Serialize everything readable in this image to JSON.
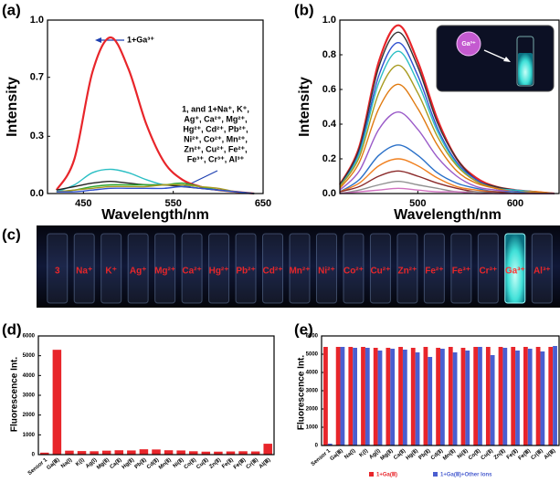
{
  "chart_data": [
    {
      "type": "line",
      "label": "(a)",
      "x_label": "Wavelength/nm",
      "y_label": "Intensity",
      "annotations": [
        "1+Ga³⁺"
      ],
      "note_lines": [
        "1, and 1+Na⁺, K⁺,",
        "Ag⁺, Ca²⁺, Mg²⁺,",
        "Hg²⁺, Cd²⁺, Pb²⁺,",
        "Ni²⁺, Co²⁺, Mn²⁺,",
        "Zn²⁺, Cu²⁺, Fe²⁺,",
        "Fe³⁺, Cr³⁺, Al³⁺"
      ],
      "x": [
        420,
        440,
        460,
        480,
        500,
        520,
        540,
        560,
        580,
        600,
        620,
        640
      ],
      "xlim": [
        410,
        650
      ],
      "xticks": [
        450,
        550,
        650
      ],
      "ylim": [
        0,
        1.0
      ],
      "yticks": [
        {
          "value": 0,
          "label": "0.0"
        },
        {
          "value": 0.33,
          "label": "0.3"
        },
        {
          "value": 0.67,
          "label": "0.7"
        },
        {
          "value": 1.0,
          "label": "1.0"
        }
      ],
      "series": [
        {
          "color": "#e8252a",
          "values": [
            0.02,
            0.2,
            0.7,
            0.9,
            0.72,
            0.4,
            0.18,
            0.08,
            0.04,
            0.02,
            0.01,
            0
          ]
        },
        {
          "color": "#2bbfc4",
          "values": [
            0.01,
            0.05,
            0.12,
            0.14,
            0.12,
            0.08,
            0.05,
            0.05,
            0.04,
            0.02,
            0.01,
            0
          ]
        },
        {
          "color": "#222222",
          "values": [
            0.02,
            0.04,
            0.06,
            0.07,
            0.06,
            0.05,
            0.05,
            0.04,
            0.03,
            0.02,
            0.01,
            0
          ]
        },
        {
          "color": "#2ea62e",
          "values": [
            0.01,
            0.02,
            0.04,
            0.05,
            0.05,
            0.05,
            0.05,
            0.06,
            0.04,
            0.02,
            0.01,
            0
          ]
        },
        {
          "color": "#a89b20",
          "values": [
            0.01,
            0.02,
            0.03,
            0.04,
            0.04,
            0.04,
            0.05,
            0.05,
            0.04,
            0.03,
            0.01,
            0
          ]
        },
        {
          "color": "#3050d0",
          "values": [
            0.01,
            0.01,
            0.02,
            0.03,
            0.03,
            0.03,
            0.03,
            0.04,
            0.03,
            0.02,
            0.01,
            0
          ]
        }
      ]
    },
    {
      "type": "line",
      "label": "(b)",
      "x_label": "Wavelength/nm",
      "y_label": "Intensity",
      "inset_label": "Ga³⁺",
      "x": [
        420,
        440,
        460,
        480,
        500,
        520,
        540,
        560,
        580,
        600,
        620,
        640
      ],
      "xlim": [
        420,
        645
      ],
      "xticks": [
        500,
        600
      ],
      "ylim": [
        0,
        1.0
      ],
      "yticks": [
        {
          "value": 0,
          "label": "0.0"
        },
        0.2,
        0.4,
        0.6,
        0.8,
        {
          "value": 1.0,
          "label": "1.0"
        }
      ],
      "series": [
        {
          "color": "#e8252a",
          "values": [
            0.05,
            0.27,
            0.76,
            0.97,
            0.76,
            0.43,
            0.2,
            0.09,
            0.04,
            0.02,
            0.01,
            0
          ]
        },
        {
          "color": "#333333",
          "values": [
            0.05,
            0.26,
            0.73,
            0.93,
            0.73,
            0.41,
            0.2,
            0.08,
            0.04,
            0.02,
            0.01,
            0
          ]
        },
        {
          "color": "#3050d0",
          "values": [
            0.04,
            0.24,
            0.68,
            0.87,
            0.68,
            0.38,
            0.18,
            0.08,
            0.03,
            0.02,
            0.01,
            0
          ]
        },
        {
          "color": "#2bbfc4",
          "values": [
            0.04,
            0.23,
            0.64,
            0.82,
            0.64,
            0.36,
            0.17,
            0.07,
            0.03,
            0.02,
            0.01,
            0
          ]
        },
        {
          "color": "#a89b20",
          "values": [
            0.04,
            0.21,
            0.58,
            0.74,
            0.58,
            0.33,
            0.16,
            0.07,
            0.03,
            0.01,
            0.01,
            0
          ]
        },
        {
          "color": "#e07a10",
          "values": [
            0.03,
            0.18,
            0.49,
            0.63,
            0.49,
            0.28,
            0.13,
            0.06,
            0.03,
            0.01,
            0.01,
            0
          ]
        },
        {
          "color": "#9a5ac8",
          "values": [
            0.02,
            0.13,
            0.37,
            0.47,
            0.37,
            0.21,
            0.1,
            0.04,
            0.02,
            0.01,
            0,
            0
          ]
        },
        {
          "color": "#2a70c8",
          "values": [
            0.01,
            0.08,
            0.22,
            0.28,
            0.22,
            0.12,
            0.06,
            0.03,
            0.01,
            0.01,
            0,
            0
          ]
        },
        {
          "color": "#f08020",
          "values": [
            0.01,
            0.06,
            0.16,
            0.2,
            0.16,
            0.09,
            0.04,
            0.02,
            0.01,
            0,
            0,
            0
          ]
        },
        {
          "color": "#8b2a2a",
          "values": [
            0.01,
            0.04,
            0.1,
            0.13,
            0.1,
            0.06,
            0.03,
            0.01,
            0.01,
            0,
            0,
            0
          ]
        },
        {
          "color": "#909090",
          "values": [
            0,
            0.02,
            0.05,
            0.07,
            0.05,
            0.03,
            0.01,
            0.01,
            0,
            0,
            0,
            0
          ]
        },
        {
          "color": "#d070c0",
          "values": [
            0,
            0.01,
            0.02,
            0.03,
            0.02,
            0.01,
            0.01,
            0,
            0,
            0,
            0,
            0
          ]
        }
      ]
    },
    {
      "type": "bar",
      "label": "(d)",
      "y_label": "Fluorescence Int.",
      "color": "#e8252a",
      "categories": [
        "Sensor 1",
        "Ga(Ⅲ)",
        "Na(Ⅰ)",
        "K(Ⅰ)",
        "Ag(Ⅰ)",
        "Mg(Ⅱ)",
        "Ca(Ⅱ)",
        "Hg(Ⅱ)",
        "Pb(Ⅱ)",
        "Cd(Ⅱ)",
        "Mn(Ⅱ)",
        "Ni(Ⅱ)",
        "Co(Ⅱ)",
        "Cu(Ⅱ)",
        "Zn(Ⅱ)",
        "Fe(Ⅱ)",
        "Fe(Ⅲ)",
        "Cr(Ⅲ)",
        "Al(Ⅲ)"
      ],
      "values": [
        100,
        5300,
        200,
        180,
        170,
        200,
        220,
        210,
        270,
        260,
        220,
        210,
        170,
        150,
        150,
        160,
        170,
        160,
        550
      ],
      "ylim": [
        0,
        6000
      ],
      "yticks": [
        0,
        1000,
        2000,
        3000,
        4000,
        5000,
        6000
      ]
    },
    {
      "type": "bar",
      "label": "(e)",
      "y_label": "Fluorescence Int.",
      "categories": [
        "Sensor 1",
        "Ga(Ⅲ)",
        "Na(Ⅰ)",
        "K(Ⅰ)",
        "Ag(Ⅰ)",
        "Mg(Ⅱ)",
        "Ca(Ⅱ)",
        "Hg(Ⅱ)",
        "Pb(Ⅱ)",
        "Cd(Ⅱ)",
        "Mn(Ⅱ)",
        "Ni(Ⅱ)",
        "Co(Ⅱ)",
        "Cu(Ⅱ)",
        "Zn(Ⅱ)",
        "Fe(Ⅱ)",
        "Fe(Ⅲ)",
        "Cr(Ⅲ)",
        "Al(Ⅲ)"
      ],
      "series": [
        {
          "name": "1+Ga(Ⅲ)",
          "color": "#e8252a",
          "values": [
            5400,
            5400,
            5400,
            5400,
            5350,
            5350,
            5400,
            5350,
            5400,
            5350,
            5400,
            5350,
            5400,
            5400,
            5400,
            5400,
            5400,
            5400,
            5400
          ]
        },
        {
          "name": "1+Ga(Ⅲ)+Other Ions",
          "color": "#4a5ed0",
          "values": [
            100,
            5400,
            5350,
            5350,
            5200,
            5300,
            5250,
            5100,
            4850,
            5300,
            5100,
            5200,
            5400,
            4950,
            5350,
            5200,
            5300,
            5150,
            5450
          ]
        }
      ],
      "ylim": [
        0,
        6000
      ],
      "yticks": [
        0,
        1000,
        2000,
        3000,
        4000,
        5000,
        6000
      ]
    }
  ],
  "photo": {
    "label": "(c)",
    "vials": [
      "3",
      "Na⁺",
      "K⁺",
      "Ag⁺",
      "Mg²⁺",
      "Ca²⁺",
      "Hg²⁺",
      "Pb²⁺",
      "Cd²⁺",
      "Mn²⁺",
      "Ni²⁺",
      "Co²⁺",
      "Cu²⁺",
      "Zn²⁺",
      "Fe²⁺",
      "Fe³⁺",
      "Cr³⁺",
      "Ga³⁺",
      "Al³⁺"
    ]
  }
}
